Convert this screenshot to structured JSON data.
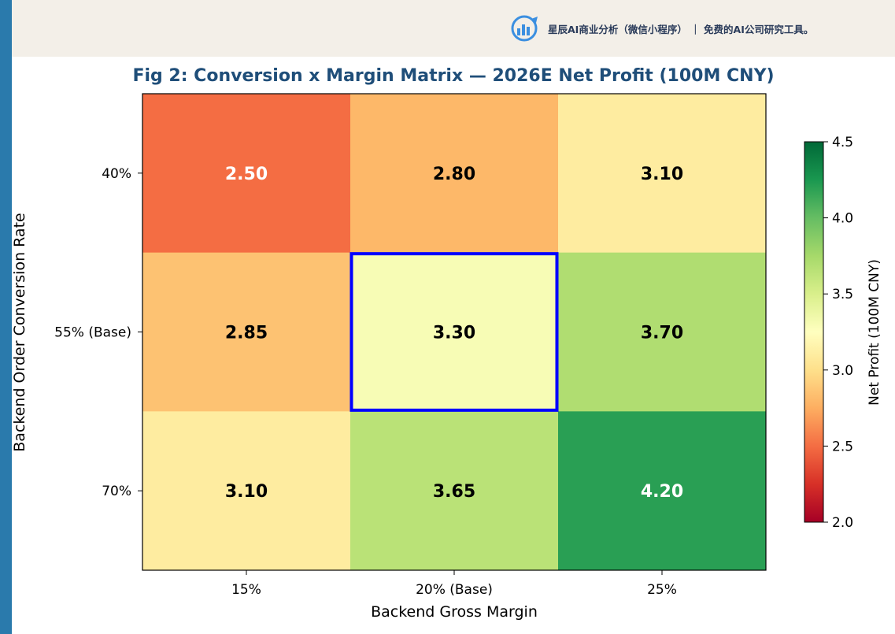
{
  "header": {
    "brand_text": "星辰AI商业分析（微信小程序） ｜ 免费的AI公司研究工具。",
    "logo_icon": "chart-bars-logo-icon"
  },
  "colors": {
    "stripe": "#2a7aac",
    "banner": "#f3efe8",
    "title": "#1f4e79",
    "highlight": "#0000ff",
    "cmap": [
      "#a50026",
      "#d73027",
      "#f46d43",
      "#fdae61",
      "#fee08b",
      "#ffffbf",
      "#d9ef8b",
      "#a6d96a",
      "#66bd63",
      "#1a9850",
      "#006837"
    ]
  },
  "chart_data": {
    "type": "heatmap",
    "title": "Fig 2: Conversion x Margin Matrix — 2026E Net Profit (100M CNY)",
    "xlabel": "Backend Gross Margin",
    "ylabel": "Backend Order Conversion Rate",
    "x_categories": [
      "15%",
      "20% (Base)",
      "25%"
    ],
    "y_categories": [
      "40%",
      "55% (Base)",
      "70%"
    ],
    "values": [
      [
        2.5,
        2.8,
        3.1
      ],
      [
        2.85,
        3.3,
        3.7
      ],
      [
        3.1,
        3.65,
        4.2
      ]
    ],
    "value_labels": [
      [
        "2.50",
        "2.80",
        "3.10"
      ],
      [
        "2.85",
        "3.30",
        "3.70"
      ],
      [
        "3.10",
        "3.65",
        "4.20"
      ]
    ],
    "highlight_cell": {
      "row": 1,
      "col": 1
    },
    "colorbar": {
      "label": "Net Profit (100M CNY)",
      "range": [
        2.0,
        4.5
      ],
      "ticks": [
        "2.0",
        "2.5",
        "3.0",
        "3.5",
        "4.0",
        "4.5"
      ]
    }
  }
}
